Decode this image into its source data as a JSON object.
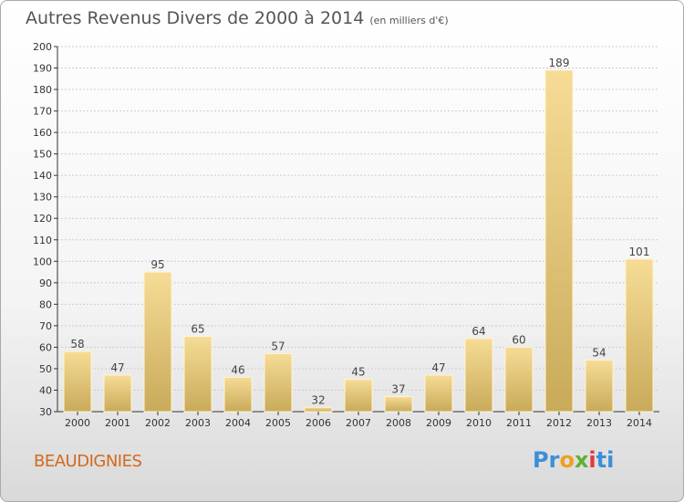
{
  "header": {
    "title": "Autres Revenus Divers de 2000 à 2014",
    "unit": "(en milliers d'€)"
  },
  "footer": {
    "commune": "BEAUDIGNIES",
    "logo_letters": [
      "P",
      "r",
      "o",
      "x",
      "i",
      "t",
      "i"
    ],
    "logo_colors": [
      "#3b8fd8",
      "#3b8fd8",
      "#f0a020",
      "#60b030",
      "#e03a3a",
      "#3b8fd8",
      "#3b8fd8"
    ]
  },
  "colors": {
    "bar_light": "#f6dc96",
    "bar_dark": "#c9aa5a",
    "grid": "#cccccc",
    "commune": "#d2691e"
  },
  "chart_data": {
    "type": "bar",
    "title": "Autres Revenus Divers de 2000 à 2014",
    "subtitle": "(en milliers d'€)",
    "categories": [
      "2000",
      "2001",
      "2002",
      "2003",
      "2004",
      "2005",
      "2006",
      "2007",
      "2008",
      "2009",
      "2010",
      "2011",
      "2012",
      "2013",
      "2014"
    ],
    "values": [
      58,
      47,
      95,
      65,
      46,
      57,
      32,
      45,
      37,
      47,
      64,
      60,
      189,
      54,
      101
    ],
    "ylim": [
      30,
      200
    ],
    "yticks": [
      30,
      40,
      50,
      60,
      70,
      80,
      90,
      100,
      110,
      120,
      130,
      140,
      150,
      160,
      170,
      180,
      190,
      200
    ],
    "grid": true,
    "data_labels": true,
    "legend": "none"
  }
}
